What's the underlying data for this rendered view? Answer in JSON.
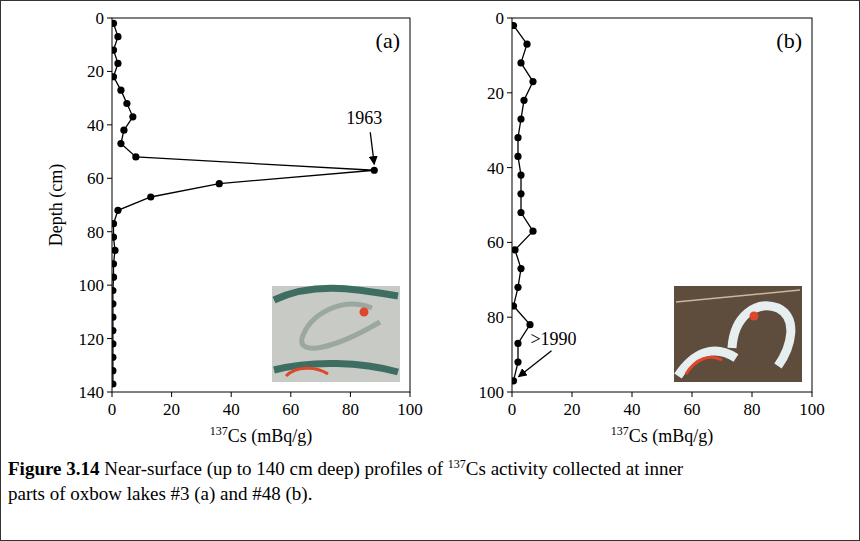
{
  "chart_data": [
    {
      "type": "line",
      "panel_label": "(a)",
      "y_label": "Depth (cm)",
      "x_label_sup": "137",
      "x_label": "Cs (mBq/g)",
      "xlim": [
        0,
        100
      ],
      "xticks": [
        0,
        20,
        40,
        60,
        80,
        100
      ],
      "ylim": [
        0,
        140
      ],
      "yticks": [
        0,
        20,
        40,
        60,
        80,
        100,
        120,
        140
      ],
      "grid": false,
      "y": [
        2,
        7,
        12,
        17,
        22,
        27,
        32,
        37,
        42,
        47,
        52,
        57,
        62,
        67,
        72,
        77,
        82,
        87,
        92,
        97,
        102,
        107,
        112,
        117,
        122,
        127,
        132,
        137
      ],
      "series": [
        {
          "values": [
            0.5,
            2,
            0.5,
            2,
            0.5,
            3,
            5,
            7,
            4,
            3,
            8,
            88,
            36,
            13,
            2,
            0.5,
            0.5,
            1,
            0.5,
            0.5,
            0.3,
            0.3,
            0.3,
            0.3,
            0.3,
            0.3,
            0.3,
            0.3
          ],
          "color": "#000000",
          "marker": "circle"
        }
      ],
      "annotations": [
        {
          "text": "1963",
          "index": 11
        }
      ]
    },
    {
      "type": "line",
      "panel_label": "(b)",
      "x_label_sup": "137",
      "x_label": "Cs (mBq/g)",
      "xlim": [
        0,
        100
      ],
      "xticks": [
        0,
        20,
        40,
        60,
        80,
        100
      ],
      "ylim": [
        0,
        100
      ],
      "yticks": [
        0,
        20,
        40,
        60,
        80,
        100
      ],
      "grid": false,
      "y": [
        2,
        7,
        12,
        17,
        22,
        27,
        32,
        37,
        42,
        47,
        52,
        57,
        62,
        67,
        72,
        77,
        82,
        87,
        92,
        97
      ],
      "series": [
        {
          "values": [
            0.5,
            5,
            3,
            7,
            4,
            3,
            2,
            2,
            3,
            3,
            3,
            7,
            1,
            3,
            2,
            0.5,
            6,
            2,
            2,
            0.5
          ],
          "color": "#000000",
          "marker": "circle"
        }
      ],
      "annotations": [
        {
          "text": ">1990",
          "index": 19
        }
      ]
    }
  ],
  "caption": {
    "bold": "Figure 3.14",
    "parts": [
      {
        "text": " Near-surface (up to 140 cm deep) profiles of "
      },
      {
        "sup": "137"
      },
      {
        "text": "Cs activity collected at inner parts of oxbow lakes #3 (a) and #48 (b)."
      }
    ]
  }
}
